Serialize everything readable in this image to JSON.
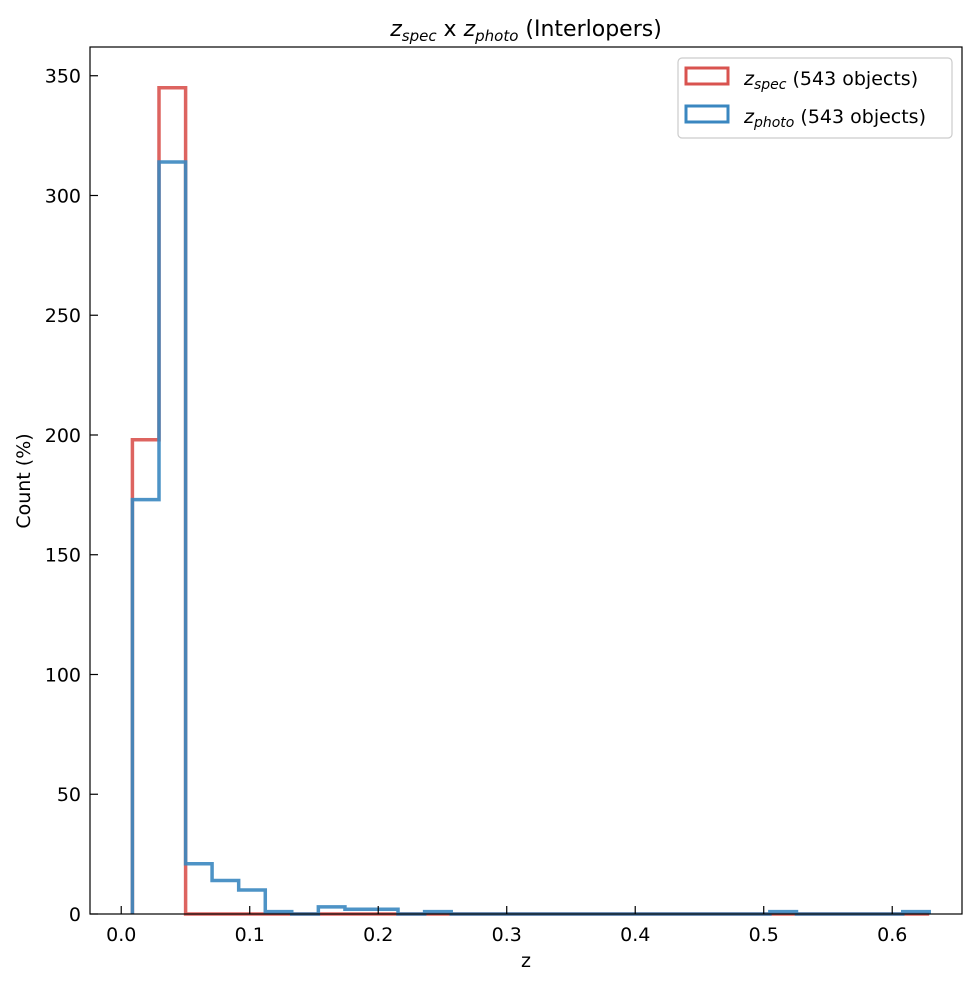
{
  "chart_data": {
    "type": "histogram",
    "title": {
      "part1_var": "z",
      "part1_sub": "spec",
      "connector": " x ",
      "part2_var": "z",
      "part2_sub": "photo",
      "suffix": " (Interlopers)"
    },
    "xlabel": "z",
    "ylabel": "Count (%)",
    "xlim": [
      -0.0243,
      0.6543
    ],
    "ylim": [
      0,
      362
    ],
    "xticks": [
      {
        "value": 0.0,
        "label": "0.0"
      },
      {
        "value": 0.1,
        "label": "0.1"
      },
      {
        "value": 0.2,
        "label": "0.2"
      },
      {
        "value": 0.3,
        "label": "0.3"
      },
      {
        "value": 0.4,
        "label": "0.4"
      },
      {
        "value": 0.5,
        "label": "0.5"
      },
      {
        "value": 0.6,
        "label": "0.6"
      }
    ],
    "yticks": [
      {
        "value": 0,
        "label": "0"
      },
      {
        "value": 50,
        "label": "50"
      },
      {
        "value": 100,
        "label": "100"
      },
      {
        "value": 150,
        "label": "150"
      },
      {
        "value": 200,
        "label": "200"
      },
      {
        "value": 250,
        "label": "250"
      },
      {
        "value": 300,
        "label": "300"
      },
      {
        "value": 350,
        "label": "350"
      }
    ],
    "bin_edges": [
      0.0087,
      0.0294,
      0.0501,
      0.0707,
      0.0914,
      0.1121,
      0.1327,
      0.1534,
      0.1741,
      0.1948,
      0.2154,
      0.2361,
      0.2568,
      0.2774,
      0.2981,
      0.3188,
      0.3394,
      0.3601,
      0.3808,
      0.4015,
      0.4221,
      0.4428,
      0.4635,
      0.4841,
      0.5048,
      0.5255,
      0.5461,
      0.5668,
      0.5875,
      0.6082,
      0.6288
    ],
    "series": [
      {
        "name_var": "z",
        "name_sub": "spec",
        "name_suffix": " (543 objects)",
        "color": "#d9534f",
        "values": [
          198,
          345,
          0,
          0,
          0,
          0,
          0,
          0,
          0,
          0,
          0,
          0,
          0,
          0,
          0,
          0,
          0,
          0,
          0,
          0,
          0,
          0,
          0,
          0,
          0,
          0,
          0,
          0,
          0,
          0
        ]
      },
      {
        "name_var": "z",
        "name_sub": "photo",
        "name_suffix": " (543 objects)",
        "color": "#3a87c0",
        "values": [
          173,
          314,
          21,
          14,
          10,
          1,
          0,
          3,
          2,
          2,
          0,
          1,
          0,
          0,
          0,
          0,
          0,
          0,
          0,
          0,
          0,
          0,
          0,
          0,
          1,
          0,
          0,
          0,
          0,
          1
        ]
      }
    ],
    "legend": {
      "position": "top-right"
    },
    "grid": false
  }
}
